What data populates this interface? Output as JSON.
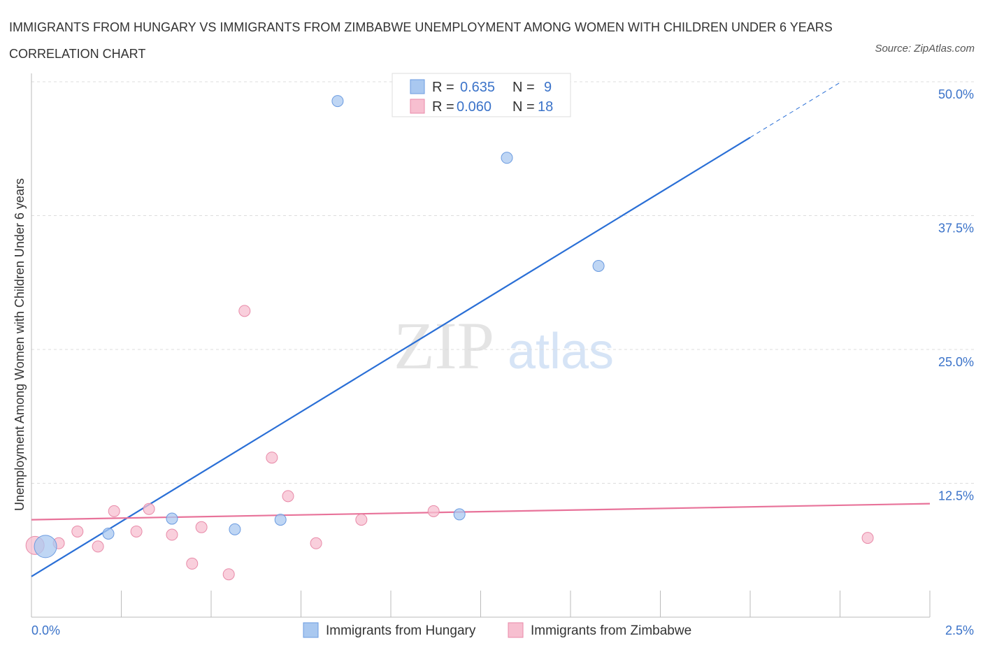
{
  "title": "IMMIGRANTS FROM HUNGARY VS IMMIGRANTS FROM ZIMBABWE UNEMPLOYMENT AMONG WOMEN WITH CHILDREN UNDER 6 YEARS CORRELATION CHART",
  "source": "Source: ZipAtlas.com",
  "watermark": {
    "zip": "ZIP",
    "atlas": "atlas"
  },
  "chart_data": {
    "type": "scatter",
    "ylabel": "Unemployment Among Women with Children Under 6 years",
    "xlim": [
      0,
      2.5
    ],
    "ylim": [
      0,
      50
    ],
    "x_tick_labels": [
      "0.0%",
      "2.5%"
    ],
    "y_ticks": [
      12.5,
      25,
      37.5,
      50
    ],
    "y_tick_labels": [
      "12.5%",
      "25.0%",
      "37.5%",
      "50.0%"
    ],
    "grid": true,
    "legend_placement": "top-center",
    "stats": [
      {
        "r_label": "R = ",
        "r": "0.635",
        "n_label": "N = ",
        "n": "9"
      },
      {
        "r_label": "R = ",
        "r": "0.060",
        "n_label": "N = ",
        "n": "18"
      }
    ],
    "series": [
      {
        "name": "Immigrants from Hungary",
        "color": "#a9c8f0",
        "stroke": "#6b9be0",
        "line_color": "#2a6fd6",
        "trend": {
          "x0": 0,
          "y0": 3.8,
          "x1": 2.0,
          "y1": 44.8,
          "dash_to_x": 2.25
        },
        "points": [
          [
            0.039,
            6.6,
            "big"
          ],
          [
            0.214,
            7.8
          ],
          [
            0.391,
            9.2
          ],
          [
            0.566,
            8.2
          ],
          [
            0.693,
            9.1
          ],
          [
            0.852,
            48.2
          ],
          [
            1.191,
            9.6
          ],
          [
            1.323,
            42.9
          ],
          [
            1.578,
            32.8
          ]
        ]
      },
      {
        "name": "Immigrants from Zimbabwe",
        "color": "#f7bfd0",
        "stroke": "#e88aa8",
        "line_color": "#e8739a",
        "trend": {
          "x0": 0,
          "y0": 9.1,
          "x1": 2.5,
          "y1": 10.6
        },
        "points": [
          [
            0.01,
            6.7,
            "mid"
          ],
          [
            0.076,
            6.9
          ],
          [
            0.128,
            8.0
          ],
          [
            0.185,
            6.6
          ],
          [
            0.23,
            9.9
          ],
          [
            0.292,
            8.0
          ],
          [
            0.327,
            10.1
          ],
          [
            0.391,
            7.7
          ],
          [
            0.447,
            5.0
          ],
          [
            0.473,
            8.4
          ],
          [
            0.549,
            4.0
          ],
          [
            0.593,
            28.6
          ],
          [
            0.669,
            14.9
          ],
          [
            0.714,
            11.3
          ],
          [
            0.792,
            6.9
          ],
          [
            0.918,
            9.1
          ],
          [
            1.119,
            9.9
          ],
          [
            2.327,
            7.4
          ]
        ]
      }
    ]
  }
}
